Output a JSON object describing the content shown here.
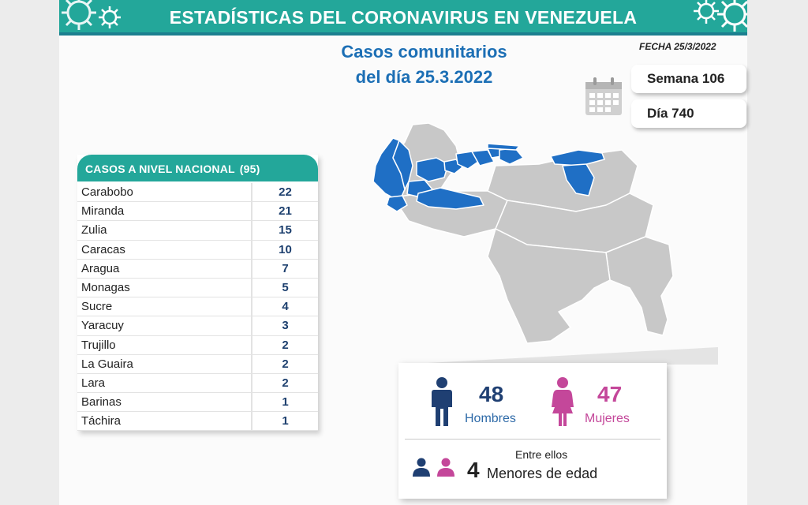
{
  "header": {
    "title": "ESTADÍSTICAS DEL CORONAVIRUS EN VENEZUELA"
  },
  "subtitle": {
    "line1": "Casos comunitarios",
    "line2": "del día 25.3.2022"
  },
  "fecha": "FECHA 25/3/2022",
  "semana": "Semana 106",
  "dia": "Día 740",
  "table": {
    "heading": "CASOS A NIVEL NACIONAL",
    "total": "(95)",
    "rows": [
      {
        "state": "Carabobo",
        "cases": "22"
      },
      {
        "state": "Miranda",
        "cases": "21"
      },
      {
        "state": "Zulia",
        "cases": "15"
      },
      {
        "state": "Caracas",
        "cases": "10"
      },
      {
        "state": "Aragua",
        "cases": "7"
      },
      {
        "state": "Monagas",
        "cases": "5"
      },
      {
        "state": "Sucre",
        "cases": "4"
      },
      {
        "state": "Yaracuy",
        "cases": "3"
      },
      {
        "state": "Trujillo",
        "cases": "2"
      },
      {
        "state": "La Guaira",
        "cases": "2"
      },
      {
        "state": "Lara",
        "cases": "2"
      },
      {
        "state": "Barinas",
        "cases": "1"
      },
      {
        "state": "Táchira",
        "cases": "1"
      }
    ]
  },
  "stats": {
    "men_count": "48",
    "men_label": "Hombres",
    "women_count": "47",
    "women_label": "Mujeres",
    "among": "Entre ellos",
    "minors_count": "4",
    "minors_label": "Menores de edad"
  },
  "colors": {
    "teal": "#23a79a",
    "blue_state": "#1f6fc5",
    "gray_state": "#c8c8c8",
    "men": "#1f3f72",
    "women": "#c4479a"
  },
  "icons": [
    "virus-icon",
    "calendar-icon",
    "man-icon",
    "woman-icon",
    "child-icon"
  ]
}
